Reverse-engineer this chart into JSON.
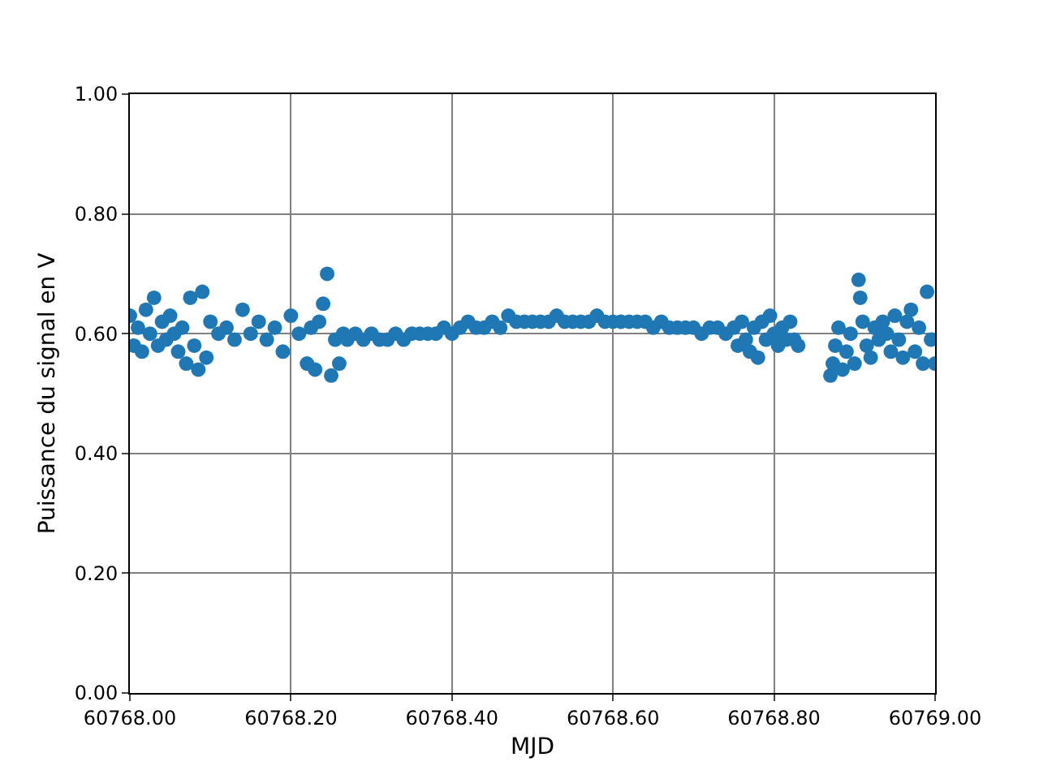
{
  "chart_data": {
    "type": "scatter",
    "xlabel": "MJD",
    "ylabel": "Puissance du signal en V",
    "xlim": [
      60768.0,
      60769.0
    ],
    "xticks": [
      {
        "value": 60768.0,
        "label": "60768.00"
      },
      {
        "value": 60768.2,
        "label": "60768.20"
      },
      {
        "value": 60768.4,
        "label": "60768.40"
      },
      {
        "value": 60768.6,
        "label": "60768.60"
      },
      {
        "value": 60768.8,
        "label": "60768.80"
      },
      {
        "value": 60769.0,
        "label": "60769.00"
      }
    ],
    "ylim": [
      0,
      1
    ],
    "yticks": [
      {
        "value": 0,
        "label": "0.00"
      },
      {
        "value": 0.2,
        "label": "0.20"
      },
      {
        "value": 0.4,
        "label": "0.40"
      },
      {
        "value": 0.6,
        "label": "0.60"
      },
      {
        "value": 0.8,
        "label": "0.80"
      },
      {
        "value": 1,
        "label": "1.00"
      }
    ],
    "grid": true,
    "marker": "circle",
    "legend": false,
    "series": [
      {
        "color": "#1f77b4",
        "x": [
          60768.0,
          60768.005,
          60768.01,
          60768.015,
          60768.02,
          60768.025,
          60768.03,
          60768.035,
          60768.04,
          60768.045,
          60768.05,
          60768.055,
          60768.06,
          60768.065,
          60768.07,
          60768.075,
          60768.08,
          60768.085,
          60768.09,
          60768.095,
          60768.1,
          60768.11,
          60768.12,
          60768.13,
          60768.14,
          60768.15,
          60768.16,
          60768.17,
          60768.18,
          60768.19,
          60768.2,
          60768.21,
          60768.22,
          60768.225,
          60768.23,
          60768.235,
          60768.24,
          60768.245,
          60768.25,
          60768.255,
          60768.26,
          60768.265,
          60768.27,
          60768.28,
          60768.29,
          60768.3,
          60768.31,
          60768.32,
          60768.33,
          60768.34,
          60768.35,
          60768.36,
          60768.37,
          60768.38,
          60768.39,
          60768.4,
          60768.41,
          60768.42,
          60768.43,
          60768.44,
          60768.45,
          60768.46,
          60768.47,
          60768.48,
          60768.49,
          60768.5,
          60768.51,
          60768.52,
          60768.53,
          60768.54,
          60768.55,
          60768.56,
          60768.57,
          60768.58,
          60768.59,
          60768.6,
          60768.61,
          60768.62,
          60768.63,
          60768.64,
          60768.65,
          60768.66,
          60768.67,
          60768.68,
          60768.69,
          60768.7,
          60768.71,
          60768.72,
          60768.73,
          60768.74,
          60768.75,
          60768.755,
          60768.76,
          60768.765,
          60768.77,
          60768.775,
          60768.78,
          60768.785,
          60768.79,
          60768.795,
          60768.8,
          60768.805,
          60768.81,
          60768.815,
          60768.82,
          60768.825,
          60768.83,
          60768.87,
          60768.873,
          60768.876,
          60768.88,
          60768.885,
          60768.89,
          60768.895,
          60768.9,
          60768.905,
          60768.907,
          60768.91,
          60768.915,
          60768.92,
          60768.925,
          60768.93,
          60768.935,
          60768.94,
          60768.945,
          60768.95,
          60768.955,
          60768.96,
          60768.965,
          60768.97,
          60768.975,
          60768.98,
          60768.985,
          60768.99,
          60768.995,
          60769.0
        ],
        "values": [
          0.63,
          0.58,
          0.61,
          0.57,
          0.64,
          0.6,
          0.66,
          0.58,
          0.62,
          0.59,
          0.63,
          0.6,
          0.57,
          0.61,
          0.55,
          0.66,
          0.58,
          0.54,
          0.67,
          0.56,
          0.62,
          0.6,
          0.61,
          0.59,
          0.64,
          0.6,
          0.62,
          0.59,
          0.61,
          0.57,
          0.63,
          0.6,
          0.55,
          0.61,
          0.54,
          0.62,
          0.65,
          0.7,
          0.53,
          0.59,
          0.55,
          0.6,
          0.59,
          0.6,
          0.59,
          0.6,
          0.59,
          0.59,
          0.6,
          0.59,
          0.6,
          0.6,
          0.6,
          0.6,
          0.61,
          0.6,
          0.61,
          0.62,
          0.61,
          0.61,
          0.62,
          0.61,
          0.63,
          0.62,
          0.62,
          0.62,
          0.62,
          0.62,
          0.63,
          0.62,
          0.62,
          0.62,
          0.62,
          0.63,
          0.62,
          0.62,
          0.62,
          0.62,
          0.62,
          0.62,
          0.61,
          0.62,
          0.61,
          0.61,
          0.61,
          0.61,
          0.6,
          0.61,
          0.61,
          0.6,
          0.61,
          0.58,
          0.62,
          0.59,
          0.57,
          0.61,
          0.56,
          0.62,
          0.59,
          0.63,
          0.6,
          0.58,
          0.61,
          0.59,
          0.62,
          0.59,
          0.58,
          0.53,
          0.55,
          0.58,
          0.61,
          0.54,
          0.57,
          0.6,
          0.55,
          0.69,
          0.66,
          0.62,
          0.58,
          0.56,
          0.61,
          0.59,
          0.62,
          0.6,
          0.57,
          0.63,
          0.59,
          0.56,
          0.62,
          0.64,
          0.57,
          0.61,
          0.55,
          0.67,
          0.59,
          0.55
        ]
      }
    ]
  }
}
